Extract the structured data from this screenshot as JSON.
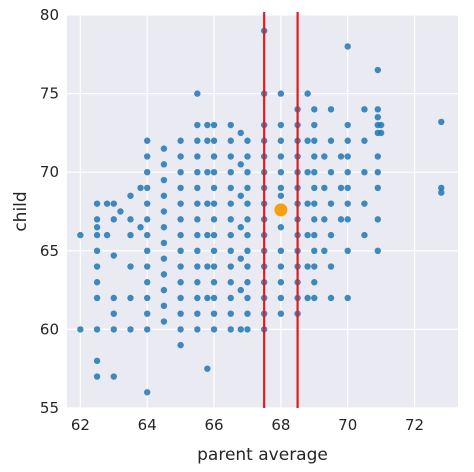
{
  "chart_data": {
    "type": "scatter",
    "xlabel": "parent average",
    "ylabel": "child",
    "xlim": [
      61.6,
      73.3
    ],
    "ylim": [
      55,
      80
    ],
    "xticks": [
      62,
      64,
      66,
      68,
      70,
      72
    ],
    "yticks": [
      55,
      60,
      65,
      70,
      75,
      80
    ],
    "grid": true,
    "background": "#eaeaf2",
    "point_color": "#1f77b4",
    "highlight_color": "#f5a00f",
    "line_color": "#e41a1c",
    "vertical_lines": [
      67.5,
      68.5
    ],
    "highlight_point": {
      "x": 68.0,
      "y": 67.6
    },
    "series": [
      {
        "points": [
          [
            62.0,
            66.0
          ],
          [
            62.0,
            60.0
          ],
          [
            62.5,
            68.0
          ],
          [
            62.5,
            67.0
          ],
          [
            62.5,
            66.5
          ],
          [
            62.5,
            66.0
          ],
          [
            62.5,
            65.0
          ],
          [
            62.5,
            64.0
          ],
          [
            62.5,
            63.0
          ],
          [
            62.5,
            62.0
          ],
          [
            62.5,
            60.0
          ],
          [
            62.5,
            58.0
          ],
          [
            62.5,
            57.0
          ],
          [
            62.8,
            68.0
          ],
          [
            62.8,
            66.0
          ],
          [
            63.0,
            68.0
          ],
          [
            63.0,
            67.0
          ],
          [
            63.0,
            64.7
          ],
          [
            63.0,
            62.0
          ],
          [
            63.0,
            61.0
          ],
          [
            63.0,
            60.0
          ],
          [
            63.0,
            57.0
          ],
          [
            63.5,
            68.5
          ],
          [
            63.5,
            67.0
          ],
          [
            63.5,
            66.0
          ],
          [
            63.5,
            64.0
          ],
          [
            63.5,
            62.0
          ],
          [
            63.5,
            60.0
          ],
          [
            63.2,
            67.5
          ],
          [
            63.8,
            69.0
          ],
          [
            63.8,
            66.5
          ],
          [
            64.0,
            72.0
          ],
          [
            64.0,
            71.0
          ],
          [
            64.0,
            70.0
          ],
          [
            64.0,
            69.0
          ],
          [
            64.0,
            68.0
          ],
          [
            64.0,
            67.0
          ],
          [
            64.0,
            66.0
          ],
          [
            64.0,
            65.0
          ],
          [
            64.0,
            64.0
          ],
          [
            64.0,
            63.0
          ],
          [
            64.0,
            62.0
          ],
          [
            64.0,
            61.0
          ],
          [
            64.0,
            60.0
          ],
          [
            64.0,
            56.0
          ],
          [
            64.5,
            71.5
          ],
          [
            64.5,
            70.5
          ],
          [
            64.5,
            69.5
          ],
          [
            64.5,
            68.5
          ],
          [
            64.5,
            67.5
          ],
          [
            64.5,
            66.5
          ],
          [
            64.5,
            65.5
          ],
          [
            64.5,
            64.5
          ],
          [
            64.5,
            63.5
          ],
          [
            64.5,
            62.5
          ],
          [
            64.5,
            61.5
          ],
          [
            64.5,
            60.5
          ],
          [
            65.0,
            72.0
          ],
          [
            65.0,
            71.0
          ],
          [
            65.0,
            70.0
          ],
          [
            65.0,
            69.0
          ],
          [
            65.0,
            68.0
          ],
          [
            65.0,
            67.0
          ],
          [
            65.0,
            66.0
          ],
          [
            65.0,
            65.0
          ],
          [
            65.0,
            64.0
          ],
          [
            65.0,
            63.0
          ],
          [
            65.0,
            62.0
          ],
          [
            65.0,
            61.0
          ],
          [
            65.0,
            60.0
          ],
          [
            65.0,
            59.0
          ],
          [
            65.5,
            75.0
          ],
          [
            65.5,
            73.0
          ],
          [
            65.5,
            72.0
          ],
          [
            65.5,
            71.0
          ],
          [
            65.5,
            70.0
          ],
          [
            65.5,
            69.0
          ],
          [
            65.5,
            68.0
          ],
          [
            65.5,
            67.0
          ],
          [
            65.5,
            66.0
          ],
          [
            65.5,
            65.0
          ],
          [
            65.5,
            64.0
          ],
          [
            65.5,
            63.0
          ],
          [
            65.5,
            62.0
          ],
          [
            65.5,
            61.0
          ],
          [
            65.5,
            60.0
          ],
          [
            65.8,
            73.0
          ],
          [
            65.8,
            72.0
          ],
          [
            65.8,
            70.0
          ],
          [
            65.8,
            68.0
          ],
          [
            65.8,
            66.0
          ],
          [
            65.8,
            64.0
          ],
          [
            65.8,
            62.0
          ],
          [
            65.8,
            57.5
          ],
          [
            66.0,
            73.0
          ],
          [
            66.0,
            72.0
          ],
          [
            66.0,
            71.0
          ],
          [
            66.0,
            70.0
          ],
          [
            66.0,
            69.0
          ],
          [
            66.0,
            68.0
          ],
          [
            66.0,
            67.0
          ],
          [
            66.0,
            66.0
          ],
          [
            66.0,
            65.0
          ],
          [
            66.0,
            64.0
          ],
          [
            66.0,
            63.0
          ],
          [
            66.0,
            62.0
          ],
          [
            66.0,
            61.0
          ],
          [
            66.0,
            60.0
          ],
          [
            66.5,
            73.0
          ],
          [
            66.5,
            72.0
          ],
          [
            66.5,
            71.0
          ],
          [
            66.5,
            70.0
          ],
          [
            66.5,
            69.0
          ],
          [
            66.5,
            68.0
          ],
          [
            66.5,
            67.0
          ],
          [
            66.5,
            66.0
          ],
          [
            66.5,
            65.0
          ],
          [
            66.5,
            64.0
          ],
          [
            66.5,
            63.0
          ],
          [
            66.5,
            62.0
          ],
          [
            66.5,
            61.0
          ],
          [
            66.5,
            60.0
          ],
          [
            66.8,
            72.5
          ],
          [
            66.8,
            70.5
          ],
          [
            66.8,
            68.5
          ],
          [
            66.8,
            66.5
          ],
          [
            66.8,
            64.5
          ],
          [
            66.8,
            62.5
          ],
          [
            66.8,
            60.0
          ],
          [
            67.0,
            72.0
          ],
          [
            67.0,
            71.0
          ],
          [
            67.0,
            70.0
          ],
          [
            67.0,
            69.0
          ],
          [
            67.0,
            68.0
          ],
          [
            67.0,
            67.0
          ],
          [
            67.0,
            66.0
          ],
          [
            67.0,
            65.0
          ],
          [
            67.0,
            64.0
          ],
          [
            67.0,
            63.0
          ],
          [
            67.0,
            62.0
          ],
          [
            67.0,
            61.0
          ],
          [
            67.0,
            60.0
          ],
          [
            67.5,
            79.0
          ],
          [
            67.5,
            75.0
          ],
          [
            67.5,
            73.0
          ],
          [
            67.5,
            72.0
          ],
          [
            67.5,
            71.0
          ],
          [
            67.5,
            70.0
          ],
          [
            67.5,
            69.0
          ],
          [
            67.5,
            68.0
          ],
          [
            67.5,
            67.0
          ],
          [
            67.5,
            66.0
          ],
          [
            67.5,
            65.0
          ],
          [
            67.5,
            64.0
          ],
          [
            67.5,
            63.0
          ],
          [
            67.5,
            62.0
          ],
          [
            67.5,
            61.0
          ],
          [
            67.5,
            60.0
          ],
          [
            68.0,
            75.0
          ],
          [
            68.0,
            73.0
          ],
          [
            68.0,
            72.0
          ],
          [
            68.0,
            71.0
          ],
          [
            68.0,
            70.0
          ],
          [
            68.0,
            69.0
          ],
          [
            68.0,
            68.5
          ],
          [
            68.0,
            66.5
          ],
          [
            68.0,
            65.0
          ],
          [
            68.0,
            64.0
          ],
          [
            68.0,
            63.0
          ],
          [
            68.0,
            62.0
          ],
          [
            68.0,
            61.0
          ],
          [
            68.5,
            74.0
          ],
          [
            68.5,
            73.0
          ],
          [
            68.5,
            72.0
          ],
          [
            68.5,
            71.0
          ],
          [
            68.5,
            70.0
          ],
          [
            68.5,
            69.0
          ],
          [
            68.5,
            68.0
          ],
          [
            68.5,
            67.0
          ],
          [
            68.5,
            66.0
          ],
          [
            68.5,
            65.0
          ],
          [
            68.5,
            64.0
          ],
          [
            68.5,
            63.0
          ],
          [
            68.5,
            62.0
          ],
          [
            68.5,
            61.0
          ],
          [
            68.8,
            75.0
          ],
          [
            68.8,
            72.0
          ],
          [
            68.8,
            70.0
          ],
          [
            68.8,
            68.0
          ],
          [
            68.8,
            66.0
          ],
          [
            68.8,
            64.0
          ],
          [
            68.8,
            62.0
          ],
          [
            69.0,
            74.0
          ],
          [
            69.0,
            73.0
          ],
          [
            69.0,
            72.0
          ],
          [
            69.0,
            71.0
          ],
          [
            69.0,
            70.0
          ],
          [
            69.0,
            69.0
          ],
          [
            69.0,
            68.0
          ],
          [
            69.0,
            67.0
          ],
          [
            69.0,
            66.0
          ],
          [
            69.0,
            65.0
          ],
          [
            69.0,
            64.0
          ],
          [
            69.0,
            63.0
          ],
          [
            69.0,
            62.0
          ],
          [
            69.3,
            71.0
          ],
          [
            69.3,
            69.0
          ],
          [
            69.3,
            67.0
          ],
          [
            69.3,
            65.0
          ],
          [
            69.5,
            74.0
          ],
          [
            69.5,
            72.0
          ],
          [
            69.5,
            70.0
          ],
          [
            69.5,
            68.0
          ],
          [
            69.5,
            66.0
          ],
          [
            69.5,
            64.0
          ],
          [
            69.5,
            62.0
          ],
          [
            69.8,
            71.0
          ],
          [
            69.8,
            69.0
          ],
          [
            69.8,
            67.0
          ],
          [
            70.0,
            78.0
          ],
          [
            70.0,
            73.0
          ],
          [
            70.0,
            72.0
          ],
          [
            70.0,
            71.0
          ],
          [
            70.0,
            70.0
          ],
          [
            70.0,
            69.0
          ],
          [
            70.0,
            68.0
          ],
          [
            70.0,
            67.0
          ],
          [
            70.0,
            65.0
          ],
          [
            70.0,
            62.0
          ],
          [
            70.5,
            74.0
          ],
          [
            70.5,
            72.0
          ],
          [
            70.5,
            70.0
          ],
          [
            70.5,
            68.0
          ],
          [
            70.5,
            66.0
          ],
          [
            70.9,
            76.5
          ],
          [
            70.9,
            74.0
          ],
          [
            70.9,
            73.5
          ],
          [
            70.9,
            73.0
          ],
          [
            70.9,
            72.5
          ],
          [
            70.9,
            71.0
          ],
          [
            70.9,
            70.0
          ],
          [
            70.9,
            69.0
          ],
          [
            70.9,
            67.0
          ],
          [
            70.9,
            65.0
          ],
          [
            71.0,
            73.0
          ],
          [
            71.0,
            72.5
          ],
          [
            72.8,
            73.2
          ],
          [
            72.8,
            69.0
          ],
          [
            72.8,
            68.7
          ]
        ]
      }
    ]
  }
}
